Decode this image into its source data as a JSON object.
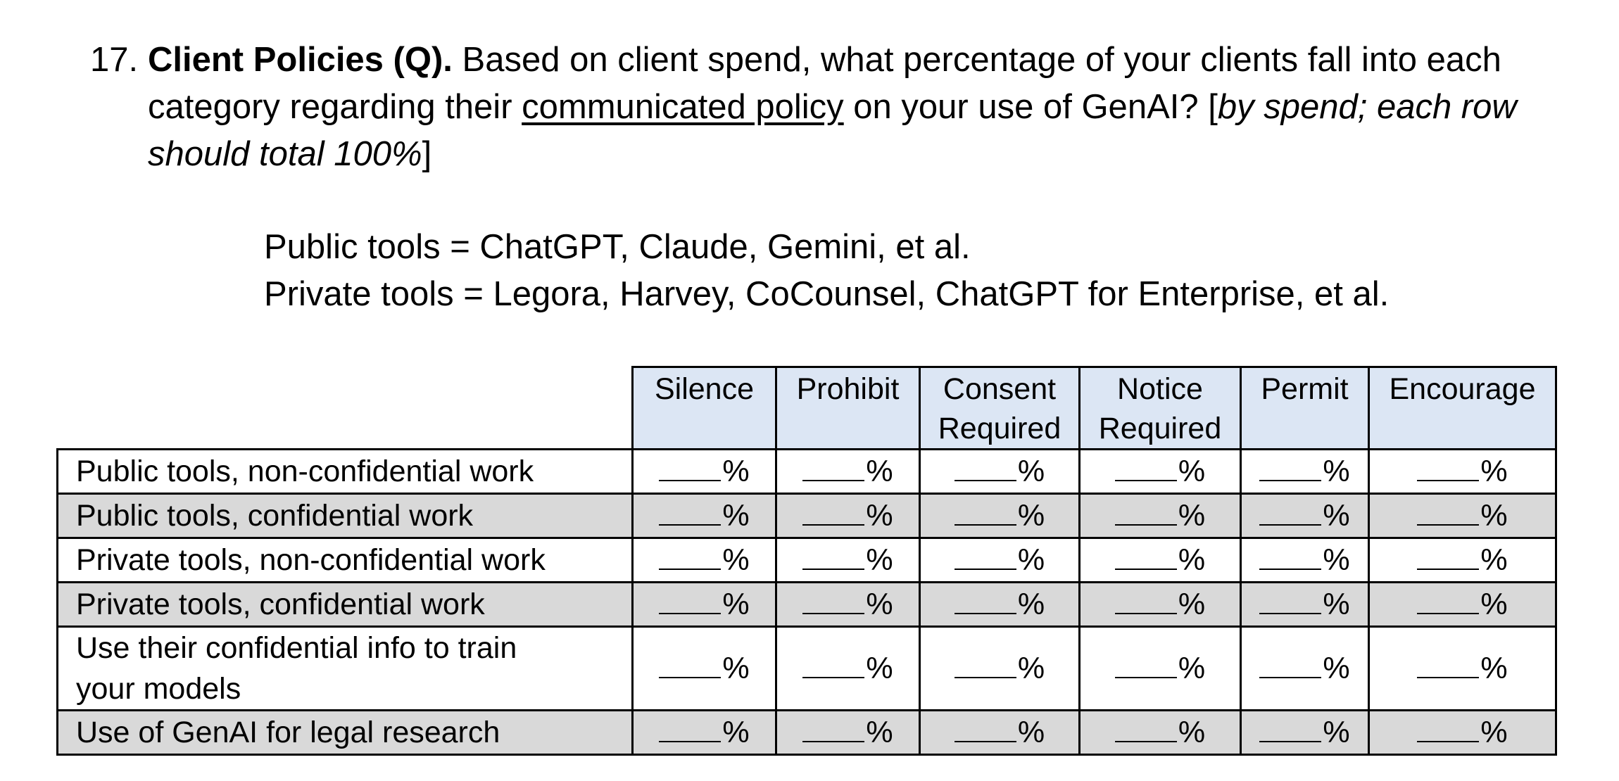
{
  "question": {
    "number": "17.",
    "title": "Client Policies (Q).",
    "text_before_link": " Based on client spend, what percentage of your clients fall into each category regarding their ",
    "underlined": "communicated policy",
    "text_after_link": " on your use of GenAI? [",
    "instruction_italic": "by spend; each row should total 100%",
    "closing_bracket": "]"
  },
  "definitions": [
    "Public tools = ChatGPT, Claude, Gemini, et al.",
    "Private tools = Legora, Harvey, CoCounsel, ChatGPT for Enterprise, et al."
  ],
  "table": {
    "columns": [
      {
        "line1": "Silence",
        "line2": ""
      },
      {
        "line1": "Prohibit",
        "line2": ""
      },
      {
        "line1": "Consent",
        "line2": "Required"
      },
      {
        "line1": "Notice",
        "line2": "Required"
      },
      {
        "line1": "Permit",
        "line2": ""
      },
      {
        "line1": "Encourage",
        "line2": ""
      }
    ],
    "rows": [
      {
        "line1": "Public tools, non-confidential work",
        "line2": ""
      },
      {
        "line1": "Public tools, confidential work",
        "line2": ""
      },
      {
        "line1": "Private tools, non-confidential work",
        "line2": ""
      },
      {
        "line1": "Private tools, confidential work",
        "line2": ""
      },
      {
        "line1": "Use their confidential info to train",
        "line2": "your models"
      },
      {
        "line1": "Use of GenAI for legal research",
        "line2": ""
      }
    ],
    "cell_suffix": "%"
  },
  "colors": {
    "header_bg": "#dce6f4",
    "shaded_row_bg": "#d9d9d9"
  }
}
